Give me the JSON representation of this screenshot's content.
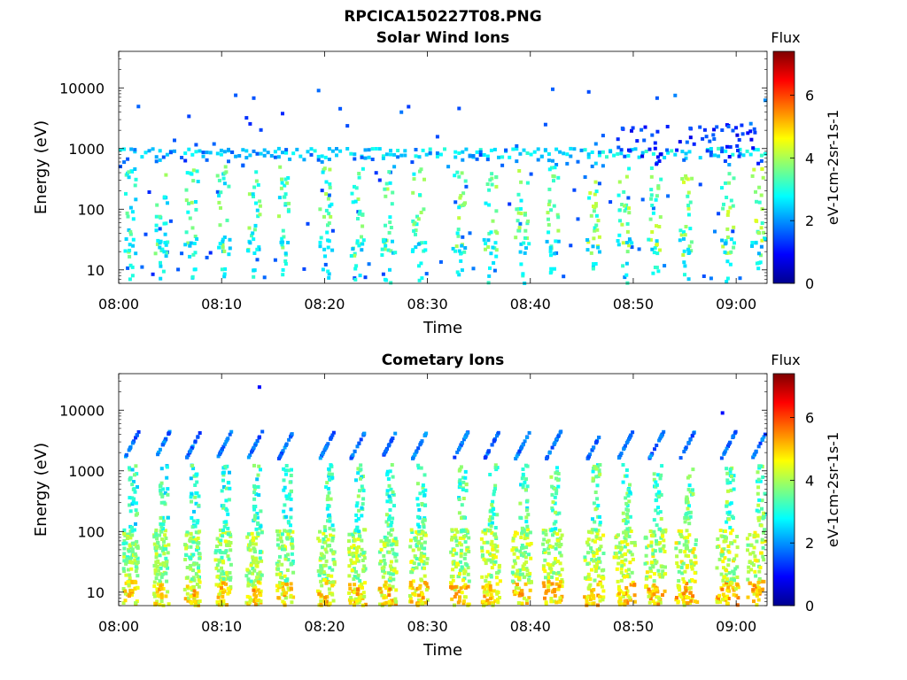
{
  "figure_title": "RPCICA150227T08.PNG",
  "colormap": [
    "#00008f",
    "#0000ff",
    "#007fff",
    "#00ffff",
    "#7fff7f",
    "#ffff00",
    "#ff7f00",
    "#ff0000",
    "#7f0000"
  ],
  "chart_data": [
    {
      "type": "heatmap",
      "title": "Solar Wind Ions",
      "xlabel": "Time",
      "ylabel": "Energy (eV)",
      "yscale": "log",
      "ylim": [
        6,
        40000
      ],
      "yticks": [
        10,
        100,
        1000,
        10000
      ],
      "ytick_labels": [
        "10",
        "100",
        "1000",
        "10000"
      ],
      "xlim": [
        "08:00",
        "09:03"
      ],
      "xticks": [
        "08:00",
        "08:10",
        "08:20",
        "08:30",
        "08:40",
        "08:50",
        "09:00"
      ],
      "colorbar": {
        "title": "Flux",
        "label": "eV-1cm-2sr-1s-1",
        "range": [
          0,
          7.4
        ],
        "ticks": [
          "0",
          "2",
          "4",
          "6"
        ]
      },
      "features": [
        {
          "energy_eV": 800,
          "flux": 2.3,
          "description": "persistent band"
        },
        {
          "energy_eV": 25,
          "flux": 2.5,
          "description": "low energy band"
        }
      ],
      "sweep_times": [
        "08:01",
        "08:04",
        "08:07",
        "08:10",
        "08:13",
        "08:16",
        "08:20",
        "08:23",
        "08:26",
        "08:29",
        "08:33",
        "08:36",
        "08:39",
        "08:42",
        "08:46",
        "08:49",
        "08:52",
        "08:55",
        "08:59",
        "09:02"
      ]
    },
    {
      "type": "heatmap",
      "title": "Cometary Ions",
      "xlabel": "Time",
      "ylabel": "Energy (eV)",
      "yscale": "log",
      "ylim": [
        6,
        40000
      ],
      "yticks": [
        10,
        100,
        1000,
        10000
      ],
      "ytick_labels": [
        "10",
        "100",
        "1000",
        "10000"
      ],
      "xlim": [
        "08:00",
        "09:03"
      ],
      "xticks": [
        "08:00",
        "08:10",
        "08:20",
        "08:30",
        "08:40",
        "08:50",
        "09:00"
      ],
      "colorbar": {
        "title": "Flux",
        "label": "eV-1cm-2sr-1s-1",
        "range": [
          0,
          7.4
        ],
        "ticks": [
          "0",
          "2",
          "4",
          "6"
        ]
      },
      "features": [
        {
          "energy_eV": 50,
          "flux": 3.8,
          "description": "dense low-energy population"
        },
        {
          "energy_eV": 8,
          "flux": 5.5,
          "description": "peak flux at lowest energies"
        }
      ],
      "sweep_times": [
        "08:01",
        "08:04",
        "08:07",
        "08:10",
        "08:13",
        "08:16",
        "08:20",
        "08:23",
        "08:26",
        "08:29",
        "08:33",
        "08:36",
        "08:39",
        "08:42",
        "08:46",
        "08:49",
        "08:52",
        "08:55",
        "08:59",
        "09:02"
      ]
    }
  ]
}
